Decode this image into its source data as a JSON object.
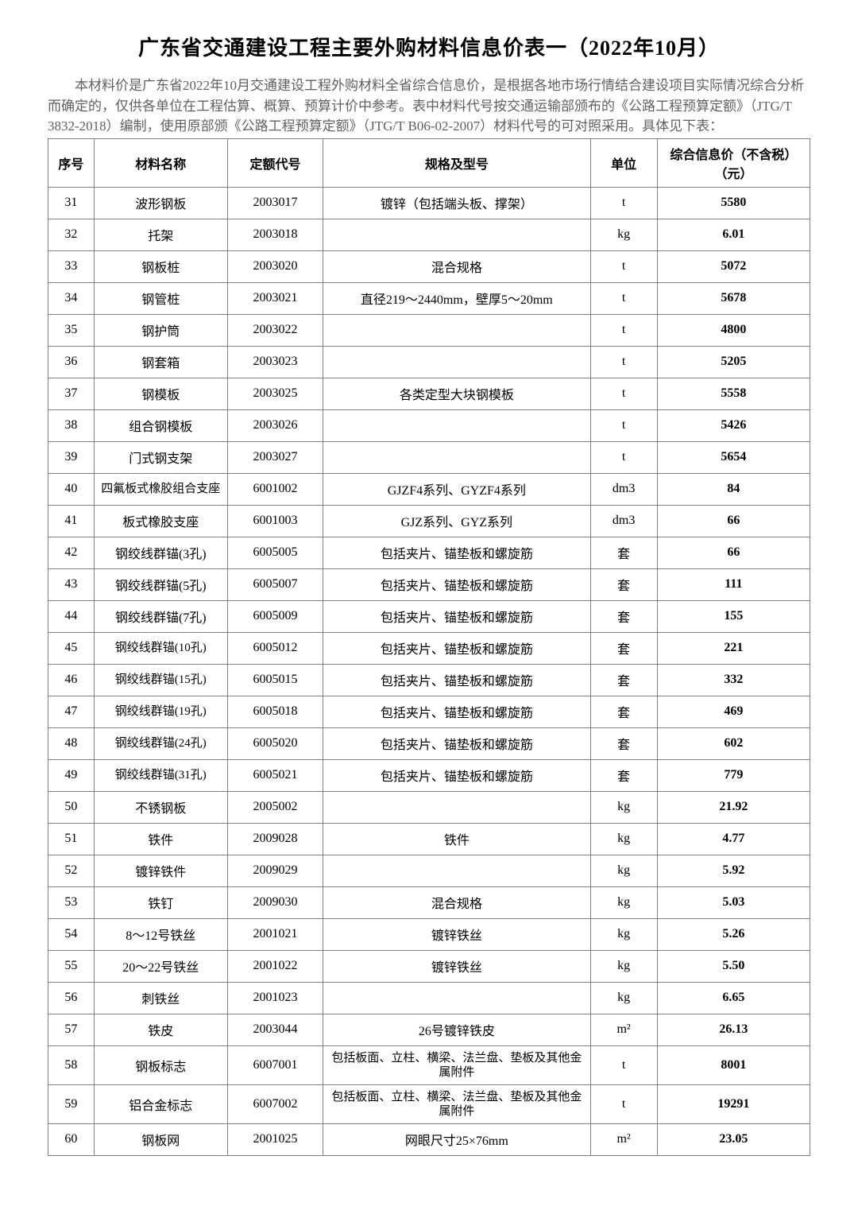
{
  "title": "广东省交通建设工程主要外购材料信息价表一（2022年10月）",
  "intro1": "本材料价是广东省2022年10月交通建设工程外购材料全省综合信息价，是根据各地市场行情结合建设项目实际情况综合分析而确定的，仅供各单位在工程估算、概算、预算计价中参考。表中材料代号按交通运输部颁布的《公路工程预算定额》（JTG/T 3832-2018）编制，使用原部颁《公路工程预算定额》（JTG/T B06-02-2007）材料代号的可对照采用。具体见下表：",
  "headers": {
    "seq": "序号",
    "name": "材料名称",
    "code": "定额代号",
    "spec": "规格及型号",
    "unit": "单位",
    "price": "综合信息价（不含税）（元）"
  },
  "rows": [
    {
      "seq": "31",
      "name": "波形钢板",
      "code": "2003017",
      "spec": "镀锌（包括端头板、撑架）",
      "unit": "t",
      "price": "5580"
    },
    {
      "seq": "32",
      "name": "托架",
      "code": "2003018",
      "spec": "",
      "unit": "kg",
      "price": "6.01"
    },
    {
      "seq": "33",
      "name": "钢板桩",
      "code": "2003020",
      "spec": "混合规格",
      "unit": "t",
      "price": "5072"
    },
    {
      "seq": "34",
      "name": "钢管桩",
      "code": "2003021",
      "spec": "直径219～2440mm，壁厚5～20mm",
      "unit": "t",
      "price": "5678"
    },
    {
      "seq": "35",
      "name": "钢护筒",
      "code": "2003022",
      "spec": "",
      "unit": "t",
      "price": "4800"
    },
    {
      "seq": "36",
      "name": "钢套箱",
      "code": "2003023",
      "spec": "",
      "unit": "t",
      "price": "5205"
    },
    {
      "seq": "37",
      "name": "钢模板",
      "code": "2003025",
      "spec": "各类定型大块钢模板",
      "unit": "t",
      "price": "5558"
    },
    {
      "seq": "38",
      "name": "组合钢模板",
      "code": "2003026",
      "spec": "",
      "unit": "t",
      "price": "5426"
    },
    {
      "seq": "39",
      "name": "门式钢支架",
      "code": "2003027",
      "spec": "",
      "unit": "t",
      "price": "5654"
    },
    {
      "seq": "40",
      "name": "四氟板式橡胶组合支座",
      "code": "6001002",
      "spec": "GJZF4系列、GYZF4系列",
      "unit": "dm3",
      "price": "84",
      "nameMulti": true
    },
    {
      "seq": "41",
      "name": "板式橡胶支座",
      "code": "6001003",
      "spec": "GJZ系列、GYZ系列",
      "unit": "dm3",
      "price": "66"
    },
    {
      "seq": "42",
      "name": "钢绞线群锚(3孔)",
      "code": "6005005",
      "spec": "包括夹片、锚垫板和螺旋筋",
      "unit": "套",
      "price": "66"
    },
    {
      "seq": "43",
      "name": "钢绞线群锚(5孔)",
      "code": "6005007",
      "spec": "包括夹片、锚垫板和螺旋筋",
      "unit": "套",
      "price": "111"
    },
    {
      "seq": "44",
      "name": "钢绞线群锚(7孔)",
      "code": "6005009",
      "spec": "包括夹片、锚垫板和螺旋筋",
      "unit": "套",
      "price": "155"
    },
    {
      "seq": "45",
      "name": "钢绞线群锚(10孔)",
      "code": "6005012",
      "spec": "包括夹片、锚垫板和螺旋筋",
      "unit": "套",
      "price": "221",
      "nameMulti": true
    },
    {
      "seq": "46",
      "name": "钢绞线群锚(15孔)",
      "code": "6005015",
      "spec": "包括夹片、锚垫板和螺旋筋",
      "unit": "套",
      "price": "332",
      "nameMulti": true
    },
    {
      "seq": "47",
      "name": "钢绞线群锚(19孔)",
      "code": "6005018",
      "spec": "包括夹片、锚垫板和螺旋筋",
      "unit": "套",
      "price": "469",
      "nameMulti": true
    },
    {
      "seq": "48",
      "name": "钢绞线群锚(24孔)",
      "code": "6005020",
      "spec": "包括夹片、锚垫板和螺旋筋",
      "unit": "套",
      "price": "602",
      "nameMulti": true
    },
    {
      "seq": "49",
      "name": "钢绞线群锚(31孔)",
      "code": "6005021",
      "spec": "包括夹片、锚垫板和螺旋筋",
      "unit": "套",
      "price": "779",
      "nameMulti": true
    },
    {
      "seq": "50",
      "name": "不锈钢板",
      "code": "2005002",
      "spec": "",
      "unit": "kg",
      "price": "21.92"
    },
    {
      "seq": "51",
      "name": "铁件",
      "code": "2009028",
      "spec": "铁件",
      "unit": "kg",
      "price": "4.77"
    },
    {
      "seq": "52",
      "name": "镀锌铁件",
      "code": "2009029",
      "spec": "",
      "unit": "kg",
      "price": "5.92"
    },
    {
      "seq": "53",
      "name": "铁钉",
      "code": "2009030",
      "spec": "混合规格",
      "unit": "kg",
      "price": "5.03"
    },
    {
      "seq": "54",
      "name": "8～12号铁丝",
      "code": "2001021",
      "spec": "镀锌铁丝",
      "unit": "kg",
      "price": "5.26"
    },
    {
      "seq": "55",
      "name": "20～22号铁丝",
      "code": "2001022",
      "spec": "镀锌铁丝",
      "unit": "kg",
      "price": "5.50"
    },
    {
      "seq": "56",
      "name": "刺铁丝",
      "code": "2001023",
      "spec": "",
      "unit": "kg",
      "price": "6.65"
    },
    {
      "seq": "57",
      "name": "铁皮",
      "code": "2003044",
      "spec": "26号镀锌铁皮",
      "unit": "m²",
      "price": "26.13"
    },
    {
      "seq": "58",
      "name": "钢板标志",
      "code": "6007001",
      "spec": "包括板面、立柱、横梁、法兰盘、垫板及其他金属附件",
      "unit": "t",
      "price": "8001",
      "specMulti": true
    },
    {
      "seq": "59",
      "name": "铝合金标志",
      "code": "6007002",
      "spec": "包括板面、立柱、横梁、法兰盘、垫板及其他金属附件",
      "unit": "t",
      "price": "19291",
      "specMulti": true
    },
    {
      "seq": "60",
      "name": "钢板网",
      "code": "2001025",
      "spec": "网眼尺寸25×76mm",
      "unit": "m²",
      "price": "23.05"
    }
  ],
  "styling": {
    "bodyWidth": 1080,
    "bodyHeight": 1527,
    "backgroundColor": "#ffffff",
    "textColor": "#000000",
    "introColor": "#606060",
    "borderColor": "#808080",
    "titleFontSize": 26,
    "introFontSize": 17,
    "cellFontSize": 16,
    "columnWidths": {
      "seq": 48,
      "name": 140,
      "code": 100,
      "spec": 280,
      "unit": 70,
      "price": 160
    }
  }
}
